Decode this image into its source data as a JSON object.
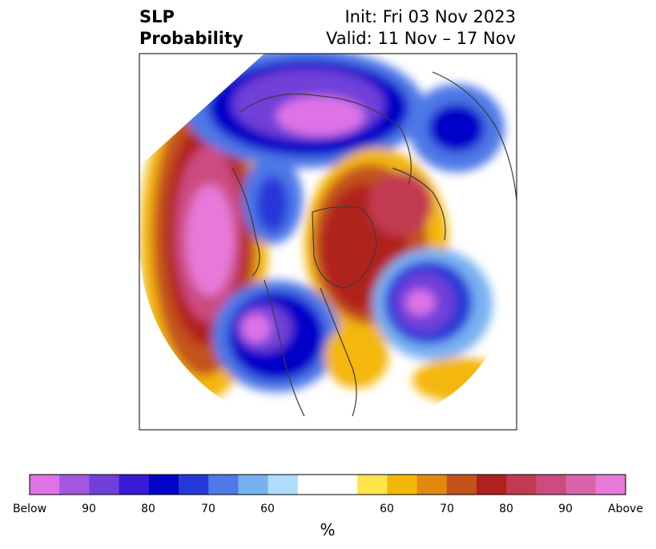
{
  "title": {
    "left_line1": "SLP",
    "left_line2": "Probability",
    "right_line1": "Init: Fri 03 Nov 2023",
    "right_line2": "Valid: 11 Nov – 17 Nov"
  },
  "colorbar": {
    "colors": [
      "#de73e6",
      "#a158de",
      "#7040d8",
      "#3a1ad2",
      "#0303c8",
      "#2638d8",
      "#4e78e6",
      "#78b1f0",
      "#afdcfa",
      "#ffffff",
      "#ffffff",
      "#fde44a",
      "#f4b709",
      "#e0890e",
      "#c4531a",
      "#b0201f",
      "#c23a51",
      "#cc4c80",
      "#d863aa",
      "#e77ad8"
    ],
    "labels": [
      "Below",
      "90",
      "80",
      "70",
      "60",
      "60",
      "70",
      "80",
      "90",
      "Above"
    ],
    "unit": "%"
  },
  "map": {
    "projection": "north-polar-stereographic",
    "features": [
      "coastlines",
      "country-borders",
      "state-borders"
    ],
    "anomalies": [
      {
        "region": "Siberia",
        "sign": "below",
        "level": "Below"
      },
      {
        "region": "North Pacific",
        "sign": "above",
        "level": "Above"
      },
      {
        "region": "Western North America",
        "sign": "below",
        "level": "Below"
      },
      {
        "region": "Greenland",
        "sign": "above",
        "level": "80"
      },
      {
        "region": "Scandinavia / Norwegian Sea",
        "sign": "above",
        "level": "80"
      },
      {
        "region": "North Atlantic",
        "sign": "below",
        "level": "Below"
      },
      {
        "region": "Eastern Europe",
        "sign": "below",
        "level": "80"
      }
    ]
  }
}
